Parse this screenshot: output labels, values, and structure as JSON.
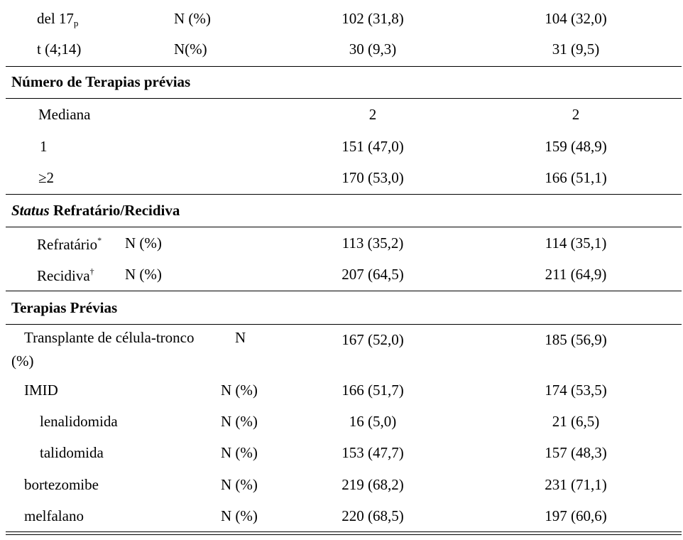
{
  "rows_top": [
    {
      "label": "del 17",
      "label_sub": "p",
      "unit": "N (%)",
      "c1": "102 (31,8)",
      "c2": "104 (32,0)"
    },
    {
      "label": "t (4;14)",
      "unit": "N(%)",
      "c1": "30 (9,3)",
      "c2": "31 (9,5)"
    }
  ],
  "section_terapias": {
    "title": "Número de Terapias prévias",
    "rows": [
      {
        "label": "Mediana",
        "c1": "2",
        "c2": "2"
      },
      {
        "label": "1",
        "c1": "151 (47,0)",
        "c2": "159 (48,9)"
      },
      {
        "label": "≥2",
        "c1": "170 (53,0)",
        "c2": "166 (51,1)"
      }
    ]
  },
  "section_status": {
    "title_italic": "Status",
    "title_rest": " Refratário/Recidiva",
    "rows": [
      {
        "label": "Refratário",
        "mark": "*",
        "unit": "N (%)",
        "c1": "113 (35,2)",
        "c2": "114 (35,1)"
      },
      {
        "label": "Recidiva",
        "mark": "†",
        "unit": "N (%)",
        "c1": "207 (64,5)",
        "c2": "211 (64,9)"
      }
    ]
  },
  "section_previas": {
    "title": "Terapias Prévias",
    "transplante": {
      "label": "Transplante de célula-tronco",
      "unit_a": "N",
      "unit_b": "(%)",
      "c1": "167 (52,0)",
      "c2": "185 (56,9)"
    },
    "rows": [
      {
        "label": "IMID",
        "unit": "N (%)",
        "c1": "166 (51,7)",
        "c2": "174 (53,5)"
      },
      {
        "label": "lenalidomida",
        "unit": "N (%)",
        "c1": "16 (5,0)",
        "c2": "21 (6,5)"
      },
      {
        "label": "talidomida",
        "unit": "N (%)",
        "c1": "153 (47,7)",
        "c2": "157 (48,3)"
      },
      {
        "label": "bortezomibe",
        "unit": "N (%)",
        "c1": "219 (68,2)",
        "c2": "231 (71,1)"
      },
      {
        "label": "melfalano",
        "unit": "N (%)",
        "c1": "220 (68,5)",
        "c2": "197 (60,6)"
      }
    ]
  }
}
